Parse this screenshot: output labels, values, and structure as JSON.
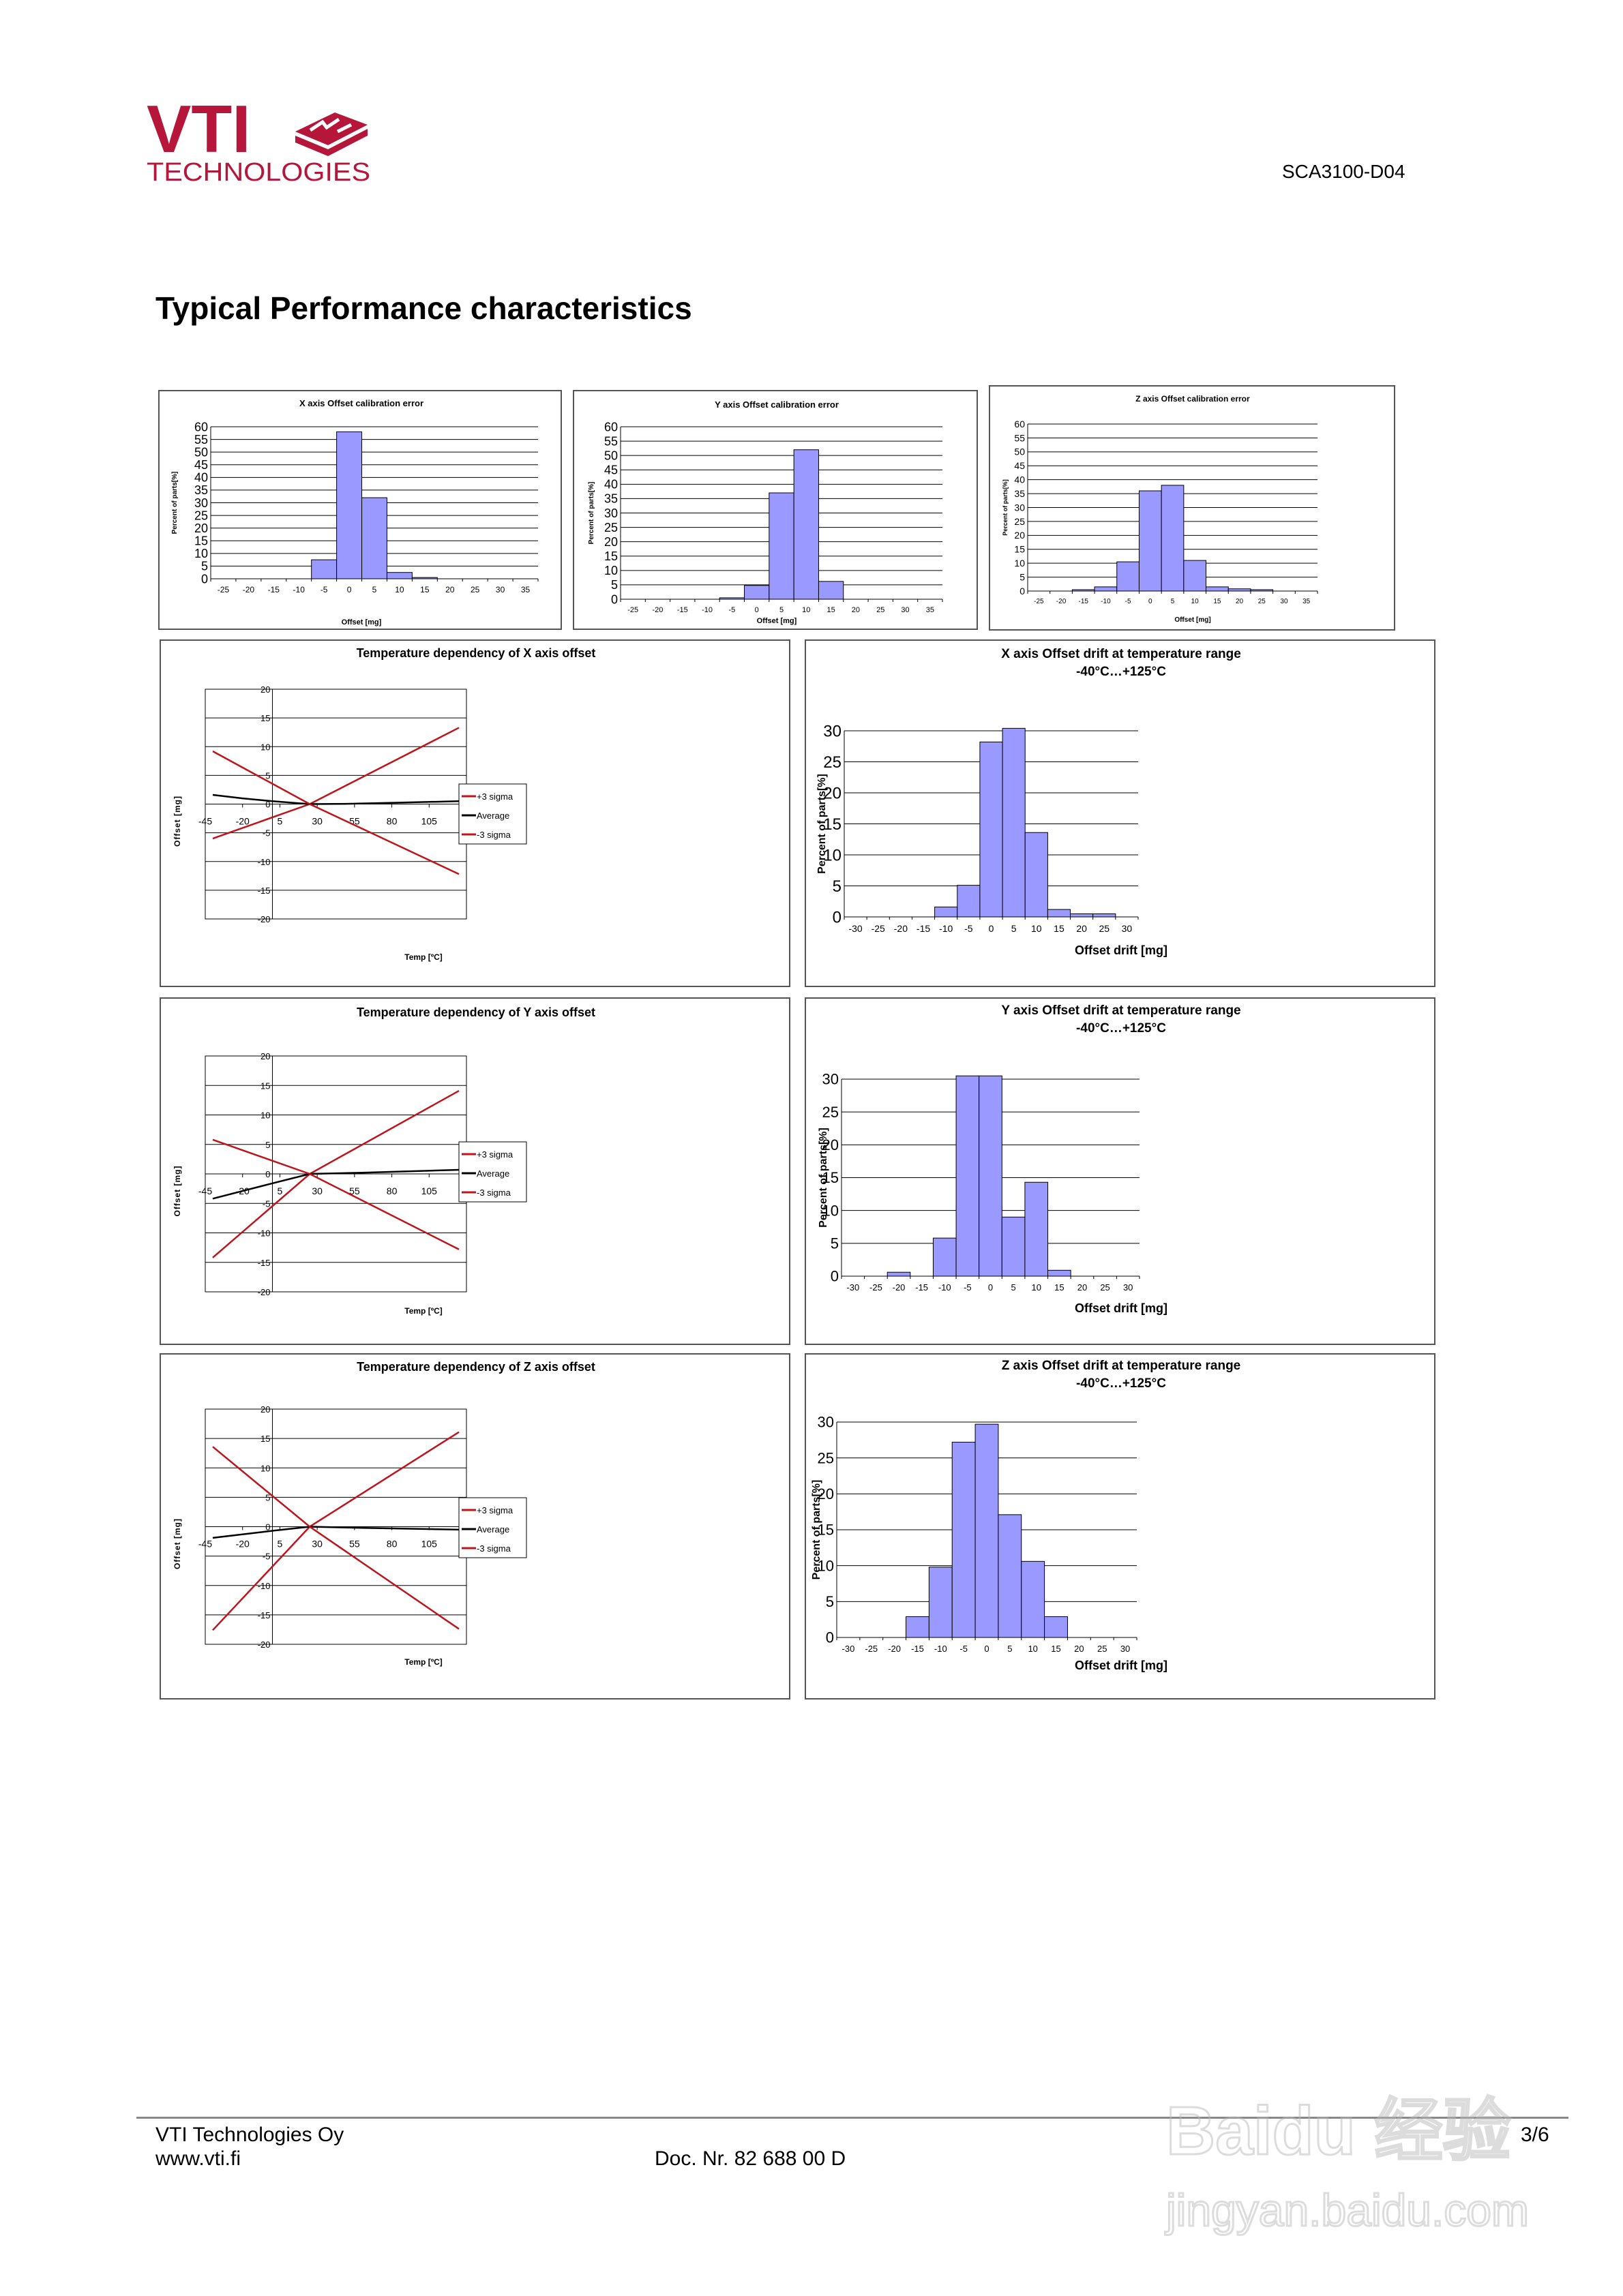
{
  "header": {
    "brand": "VTI",
    "brand_sub": "TECHNOLOGIES",
    "doc_id": "SCA3100-D04"
  },
  "page": {
    "title": "Typical Performance characteristics"
  },
  "colors": {
    "brand": "#B5163A",
    "bar_fill": "#9999FF",
    "sigma_line": "#C0141C",
    "average_line": "#000000"
  },
  "footer": {
    "company": "VTI Technologies Oy",
    "url": "www.vti.fi",
    "doc_nr": "Doc. Nr. 82 688 00 D",
    "page": "3/6"
  },
  "watermark": {
    "line1": "Baidu 经验",
    "line2": "jingyan.baidu.com"
  },
  "chart_data": [
    {
      "id": "x-calibration",
      "type": "bar",
      "title": "X axis Offset calibration error",
      "xlabel": "Offset  [mg]",
      "ylabel": "Percent of parts[%]",
      "categories": [
        "-25",
        "-20",
        "-15",
        "-10",
        "-5",
        "0",
        "5",
        "10",
        "15",
        "20",
        "25",
        "30",
        "35"
      ],
      "values": [
        0,
        0,
        0,
        0,
        7.5,
        58,
        32,
        2.5,
        0.5,
        0,
        0,
        0,
        0
      ],
      "ylim": [
        0,
        60
      ],
      "yticks": [
        0,
        5,
        10,
        15,
        20,
        25,
        30,
        35,
        40,
        45,
        50,
        55,
        60
      ],
      "grid": true
    },
    {
      "id": "y-calibration",
      "type": "bar",
      "title": "Y axis Offset calibration error",
      "xlabel": "Offset  [mg]",
      "ylabel": "Percent of parts[%]",
      "categories": [
        "-25",
        "-20",
        "-15",
        "-10",
        "-5",
        "0",
        "5",
        "10",
        "15",
        "20",
        "25",
        "30",
        "35"
      ],
      "values": [
        0,
        0,
        0,
        0,
        0.5,
        4.8,
        37,
        52,
        6.2,
        0,
        0,
        0,
        0
      ],
      "ylim": [
        0,
        60
      ],
      "yticks": [
        0,
        5,
        10,
        15,
        20,
        25,
        30,
        35,
        40,
        45,
        50,
        55,
        60
      ],
      "grid": true
    },
    {
      "id": "z-calibration",
      "type": "bar",
      "title": "Z axis Offset calibration error",
      "xlabel": "Offset  [mg]",
      "ylabel": "Percent of parts[%]",
      "categories": [
        "-25",
        "-20",
        "-15",
        "-10",
        "-5",
        "0",
        "5",
        "10",
        "15",
        "20",
        "25",
        "30",
        "35"
      ],
      "values": [
        0,
        0,
        0.5,
        1.5,
        10.5,
        36,
        38,
        11,
        1.5,
        0.8,
        0.5,
        0,
        0
      ],
      "ylim": [
        0,
        60
      ],
      "yticks": [
        0,
        5,
        10,
        15,
        20,
        25,
        30,
        35,
        40,
        45,
        50,
        55,
        60
      ],
      "grid": true
    },
    {
      "id": "x-temp",
      "type": "line",
      "title": "Temperature dependency of X axis offset",
      "xlabel": "Temp [ºC]",
      "ylabel": "Offset [mg]",
      "xticks": [
        -45,
        -20,
        5,
        30,
        55,
        80,
        105,
        130
      ],
      "xlim": [
        -45,
        130
      ],
      "ylim": [
        -20,
        20
      ],
      "yticks": [
        -20,
        -15,
        -10,
        -5,
        0,
        5,
        10,
        15,
        20
      ],
      "y_axis_at_x": 0,
      "legend": "right",
      "series": [
        {
          "name": "+3 sigma",
          "color": "#C0141C",
          "x": [
            -40,
            25,
            125
          ],
          "y": [
            -6,
            0,
            13.3
          ]
        },
        {
          "name": "Average",
          "color": "#000000",
          "x": [
            -40,
            -20,
            0,
            25,
            50,
            85,
            125
          ],
          "y": [
            1.6,
            1.0,
            0.5,
            0,
            0.05,
            0.25,
            0.5
          ]
        },
        {
          "name": "-3 sigma",
          "color": "#C0141C",
          "x": [
            -40,
            25,
            125
          ],
          "y": [
            9.2,
            0,
            -12.2
          ]
        }
      ]
    },
    {
      "id": "x-drift",
      "type": "bar",
      "title": "X axis Offset drift at temperature range",
      "subtitle": "-40°C…+125°C",
      "xlabel": "Offset drift [mg]",
      "ylabel": "Percent of parts[%]",
      "categories": [
        "-30",
        "-25",
        "-20",
        "-15",
        "-10",
        "-5",
        "0",
        "5",
        "10",
        "15",
        "20",
        "25",
        "30"
      ],
      "values": [
        0,
        0,
        0,
        0,
        1.6,
        5.1,
        28.2,
        30.4,
        13.6,
        1.2,
        0.5,
        0.5,
        0
      ],
      "ylim": [
        0,
        30
      ],
      "yticks": [
        0,
        5,
        10,
        15,
        20,
        25,
        30
      ],
      "grid": true
    },
    {
      "id": "y-temp",
      "type": "line",
      "title": "Temperature dependency of Y axis offset",
      "xlabel": "Temp [ºC]",
      "ylabel": "Offset [mg]",
      "xticks": [
        -45,
        -20,
        5,
        30,
        55,
        80,
        105,
        130
      ],
      "xlim": [
        -45,
        130
      ],
      "ylim": [
        -20,
        20
      ],
      "yticks": [
        -20,
        -15,
        -10,
        -5,
        0,
        5,
        10,
        15,
        20
      ],
      "y_axis_at_x": 0,
      "legend": "right",
      "series": [
        {
          "name": "+3 sigma",
          "color": "#C0141C",
          "x": [
            -40,
            25,
            125
          ],
          "y": [
            -14.2,
            0,
            14.1
          ]
        },
        {
          "name": "Average",
          "color": "#000000",
          "x": [
            -40,
            -20,
            0,
            25,
            60,
            125
          ],
          "y": [
            -4.2,
            -2.9,
            -1.6,
            0,
            0.2,
            0.7
          ]
        },
        {
          "name": "-3 sigma",
          "color": "#C0141C",
          "x": [
            -40,
            25,
            125
          ],
          "y": [
            5.8,
            0,
            -12.8
          ]
        }
      ]
    },
    {
      "id": "y-drift",
      "type": "bar",
      "title": "Y axis Offset drift at temperature range",
      "subtitle": "-40°C…+125°C",
      "xlabel": "Offset drift [mg]",
      "ylabel": "Percent of parts[%]",
      "categories": [
        "-30",
        "-25",
        "-20",
        "-15",
        "-10",
        "-5",
        "0",
        "5",
        "10",
        "15",
        "20",
        "25",
        "30"
      ],
      "values": [
        0,
        0,
        0.6,
        0,
        5.8,
        30.5,
        30.5,
        9,
        14.3,
        0.9,
        0,
        0,
        0
      ],
      "ylim": [
        0,
        30
      ],
      "yticks": [
        0,
        5,
        10,
        15,
        20,
        25,
        30
      ],
      "grid": true
    },
    {
      "id": "z-temp",
      "type": "line",
      "title": "Temperature dependency of Z axis offset",
      "xlabel": "Temp [ºC]",
      "ylabel": "Offset [mg]",
      "xticks": [
        -45,
        -20,
        5,
        30,
        55,
        80,
        105,
        130
      ],
      "xlim": [
        -45,
        130
      ],
      "ylim": [
        -20,
        20
      ],
      "yticks": [
        -20,
        -15,
        -10,
        -5,
        0,
        5,
        10,
        15,
        20
      ],
      "y_axis_at_x": 0,
      "legend": "right",
      "series": [
        {
          "name": "+3 sigma",
          "color": "#C0141C",
          "x": [
            -40,
            25,
            125
          ],
          "y": [
            -17.6,
            0,
            16.1
          ]
        },
        {
          "name": "Average",
          "color": "#000000",
          "x": [
            -40,
            0,
            25,
            60,
            125
          ],
          "y": [
            -1.9,
            -0.7,
            0,
            -0.2,
            -0.5
          ]
        },
        {
          "name": "-3 sigma",
          "color": "#C0141C",
          "x": [
            -40,
            25,
            125
          ],
          "y": [
            13.6,
            0,
            -17.4
          ]
        }
      ]
    },
    {
      "id": "z-drift",
      "type": "bar",
      "title": "Z axis Offset drift at temperature range",
      "subtitle": "-40°C…+125°C",
      "xlabel": "Offset drift [mg]",
      "ylabel": "Percent of parts[%]",
      "categories": [
        "-30",
        "-25",
        "-20",
        "-15",
        "-10",
        "-5",
        "0",
        "5",
        "10",
        "15",
        "20",
        "25",
        "30"
      ],
      "values": [
        0,
        0,
        0,
        2.9,
        9.8,
        27.2,
        29.7,
        17.1,
        10.6,
        2.9,
        0,
        0,
        0
      ],
      "ylim": [
        0,
        30
      ],
      "yticks": [
        0,
        5,
        10,
        15,
        20,
        25,
        30
      ],
      "grid": true
    }
  ]
}
